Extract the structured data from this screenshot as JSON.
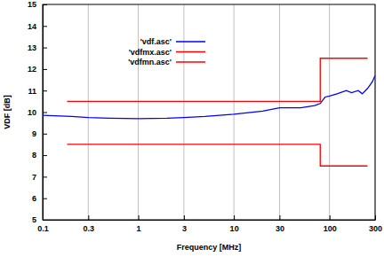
{
  "chart_data": {
    "type": "line",
    "x_label": "Frequency [MHz]",
    "y_label": "VDF [dB]",
    "log": "x",
    "grid": true,
    "legend": "upper left",
    "xlim": [
      0.1,
      300
    ],
    "xticks": [
      0.1,
      0.3,
      1,
      3,
      10,
      30,
      100,
      300
    ],
    "ylim": [
      5,
      15
    ],
    "yticks": [
      5,
      6,
      7,
      8,
      9,
      10,
      11,
      12,
      13,
      14,
      15
    ],
    "series": [
      {
        "name": "'vdf.asc'",
        "color": "#0000ff",
        "x": [
          0.1,
          0.2,
          0.3,
          0.5,
          1,
          2,
          3,
          5,
          10,
          20,
          30,
          50,
          70,
          80,
          90,
          100,
          120,
          150,
          170,
          200,
          220,
          250,
          280,
          300
        ],
        "values": [
          9.85,
          9.8,
          9.75,
          9.72,
          9.7,
          9.72,
          9.75,
          9.8,
          9.9,
          10.05,
          10.2,
          10.2,
          10.3,
          10.4,
          10.7,
          10.75,
          10.85,
          11.0,
          10.9,
          11.0,
          10.85,
          11.1,
          11.4,
          11.7
        ]
      },
      {
        "name": "'vdfmx.asc'",
        "color": "#ff0000",
        "x": [
          0.18,
          80,
          80,
          250
        ],
        "values": [
          10.5,
          10.5,
          12.5,
          12.5
        ]
      },
      {
        "name": "'vdfmn.asc'",
        "color": "#ff0000",
        "x": [
          0.18,
          80,
          80,
          250
        ],
        "values": [
          8.5,
          8.5,
          7.5,
          7.5
        ]
      }
    ]
  }
}
